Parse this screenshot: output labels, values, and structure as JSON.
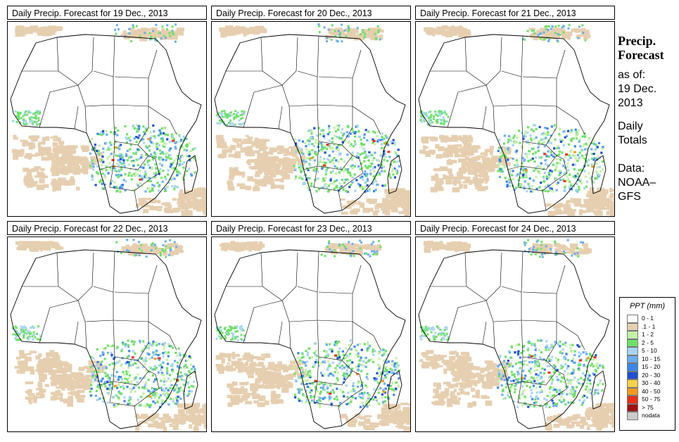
{
  "panels": [
    {
      "title": "Daily Precip. Forecast for  19 Dec., 2013"
    },
    {
      "title": "Daily Precip. Forecast for  20 Dec., 2013"
    },
    {
      "title": "Daily Precip. Forecast for  21 Dec., 2013"
    },
    {
      "title": "Daily Precip. Forecast for  22 Dec., 2013"
    },
    {
      "title": "Daily Precip. Forecast for  23 Dec., 2013"
    },
    {
      "title": "Daily Precip. Forecast for  24 Dec., 2013"
    }
  ],
  "sidebar": {
    "title_line1": "Precip.",
    "title_line2": "Forecast",
    "asof_label": "as of:",
    "asof_date_line1": "19 Dec.",
    "asof_date_line2": "2013",
    "daily_line1": "Daily",
    "daily_line2": "Totals",
    "data_line1": "Data:",
    "data_line2": "NOAA–",
    "data_line3": "GFS"
  },
  "chart_data": {
    "type": "heatmap",
    "title": "Precip. Forecast",
    "subtitle": "as of: 19 Dec. 2013 — Daily Totals",
    "source": "Data: NOAA–GFS",
    "region": "Africa",
    "legend": {
      "title": "PPT (mm)",
      "entries": [
        {
          "label": "0 - 1",
          "color": "#ffffff"
        },
        {
          "label": ".1 - 1",
          "color": "#e6cfb0"
        },
        {
          "label": "1 - 2",
          "color": "#c4f0a8"
        },
        {
          "label": "2 - 5",
          "color": "#6fe06a"
        },
        {
          "label": "5 - 10",
          "color": "#a8d4f2"
        },
        {
          "label": "10 - 15",
          "color": "#6aaeee"
        },
        {
          "label": "15 - 20",
          "color": "#3c86e6"
        },
        {
          "label": "20 - 30",
          "color": "#1f4fd0"
        },
        {
          "label": "30 - 40",
          "color": "#f4d24a"
        },
        {
          "label": "40 - 50",
          "color": "#f49a1e"
        },
        {
          "label": "50 - 75",
          "color": "#e8301a"
        },
        {
          "label": "> 75",
          "color": "#a01010"
        },
        {
          "label": "nodata",
          "color": "#cccccc"
        }
      ]
    },
    "maps": [
      {
        "date": "19 Dec., 2013",
        "max_category": "> 75"
      },
      {
        "date": "20 Dec., 2013",
        "max_category": "> 75"
      },
      {
        "date": "21 Dec., 2013",
        "max_category": "> 75"
      },
      {
        "date": "22 Dec., 2013",
        "max_category": "> 75"
      },
      {
        "date": "23 Dec., 2013",
        "max_category": "> 75"
      },
      {
        "date": "24 Dec., 2013",
        "max_category": "> 75"
      }
    ]
  }
}
